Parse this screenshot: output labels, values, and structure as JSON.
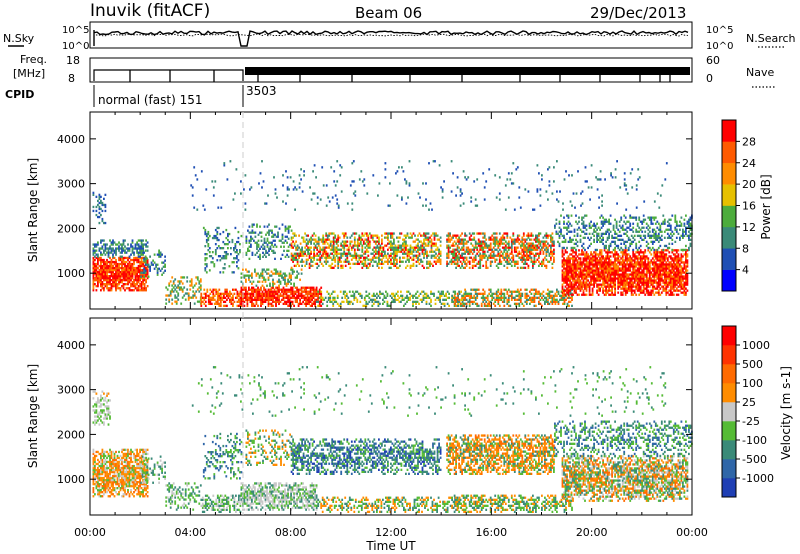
{
  "header": {
    "station": "Inuvik (fitACF)",
    "beam": "Beam 06",
    "date": "29/Dec/2013"
  },
  "panel_labels": {
    "nsky": "N.Sky",
    "nsearch": "N.Search",
    "freq_line1": "Freq.",
    "freq_line2": "[MHz]",
    "nave": "Nave",
    "cpid": "CPID"
  },
  "axis_ticks": {
    "noise_left_top": "10^5",
    "noise_left_bottom": "10^0",
    "noise_right_top": "10^5",
    "noise_right_bottom": "10^0",
    "freq_left_top": "18",
    "freq_left_bottom": "8",
    "nave_right_top": "60",
    "nave_right_bottom": "0"
  },
  "cpid_labels": {
    "first": "normal (fast) 151",
    "second": "3503"
  },
  "chart_data": [
    {
      "type": "heatmap",
      "name": "power",
      "ylabel": "Slant Range [km]",
      "yticks": [
        "1000",
        "2000",
        "3000",
        "4000"
      ],
      "ylim": [
        200,
        4600
      ],
      "xticks": [
        "00:00",
        "04:00",
        "08:00",
        "12:00",
        "16:00",
        "20:00",
        "00:00"
      ],
      "xlim": [
        0,
        24
      ],
      "colorbar": {
        "label": "Power [dB]",
        "ticks": [
          "4",
          "8",
          "12",
          "16",
          "20",
          "24",
          "28"
        ],
        "colors": [
          "#0000ff",
          "#1f4fb4",
          "#3a8a78",
          "#4cac3c",
          "#e6c000",
          "#ff8c00",
          "#ff5a00",
          "#ff0000"
        ]
      }
    },
    {
      "type": "heatmap",
      "name": "velocity",
      "ylabel": "Slant Range [km]",
      "yticks": [
        "1000",
        "2000",
        "3000",
        "4000"
      ],
      "ylim": [
        200,
        4600
      ],
      "xticks": [
        "00:00",
        "04:00",
        "08:00",
        "12:00",
        "16:00",
        "20:00",
        "00:00"
      ],
      "xlim": [
        0,
        24
      ],
      "xlabel": "Time UT",
      "colorbar": {
        "label": "Velocity [m s-1]",
        "ticks": [
          "1000",
          "500",
          "100",
          "25",
          "-25",
          "-100",
          "-500",
          "-1000"
        ],
        "colors": [
          "#1f3fb4",
          "#2f66a8",
          "#3a8a78",
          "#55bb35",
          "#c8c8c8",
          "#ff8c00",
          "#ff6a00",
          "#ff3300",
          "#ff0000"
        ]
      }
    }
  ]
}
